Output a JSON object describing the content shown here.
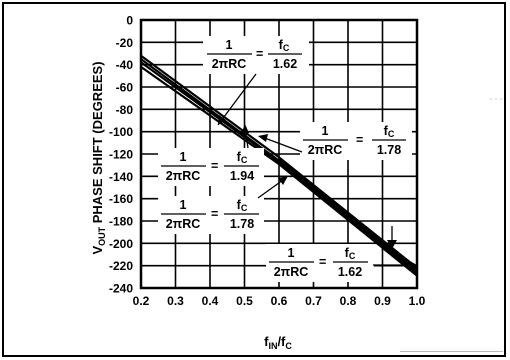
{
  "chart_data": {
    "type": "line",
    "xlabel": {
      "main": "f",
      "sub1": "IN",
      "sep": "/f",
      "sub2": "C"
    },
    "ylabel": {
      "main": "V",
      "sub": "OUT",
      "rest": " PHASE SHIFT (DEGREES)"
    },
    "xlim": [
      0.2,
      1.0
    ],
    "ylim": [
      -240,
      0
    ],
    "x_ticks": [
      "0.2",
      "0.3",
      "0.4",
      "0.5",
      "0.6",
      "0.7",
      "0.8",
      "0.9",
      "1.0"
    ],
    "y_ticks": [
      "0",
      "-20",
      "-40",
      "-60",
      "-80",
      "-100",
      "-120",
      "-140",
      "-160",
      "-180",
      "-200",
      "-220",
      "-240"
    ],
    "grid": true,
    "series": [
      {
        "x": [
          0.2,
          0.6,
          1.0
        ],
        "y": [
          -32,
          -123,
          -222
        ]
      },
      {
        "x": [
          0.2,
          0.6,
          1.0
        ],
        "y": [
          -35,
          -126,
          -225
        ]
      },
      {
        "x": [
          0.2,
          0.6,
          1.0
        ],
        "y": [
          -38,
          -127,
          -228
        ]
      },
      {
        "x": [
          0.2,
          0.6,
          1.0
        ],
        "y": [
          -42,
          -129,
          -229
        ]
      }
    ],
    "annotations": [
      {
        "num": "1",
        "den_left": "2πRC",
        "eq": "=",
        "f": "f",
        "f_sub": "C",
        "den_right": "1.62"
      },
      {
        "num": "1",
        "den_left": "2πRC",
        "eq": "=",
        "f": "f",
        "f_sub": "C",
        "den_right": "1.78"
      },
      {
        "num": "1",
        "den_left": "2πRC",
        "eq": "=",
        "f": "f",
        "f_sub": "C",
        "den_right": "1.94"
      },
      {
        "num": "1",
        "den_left": "2πRC",
        "eq": "=",
        "f": "f",
        "f_sub": "C",
        "den_right": "1.78"
      },
      {
        "num": "1",
        "den_left": "2πRC",
        "eq": "=",
        "f": "f",
        "f_sub": "C",
        "den_right": "1.62"
      }
    ]
  }
}
